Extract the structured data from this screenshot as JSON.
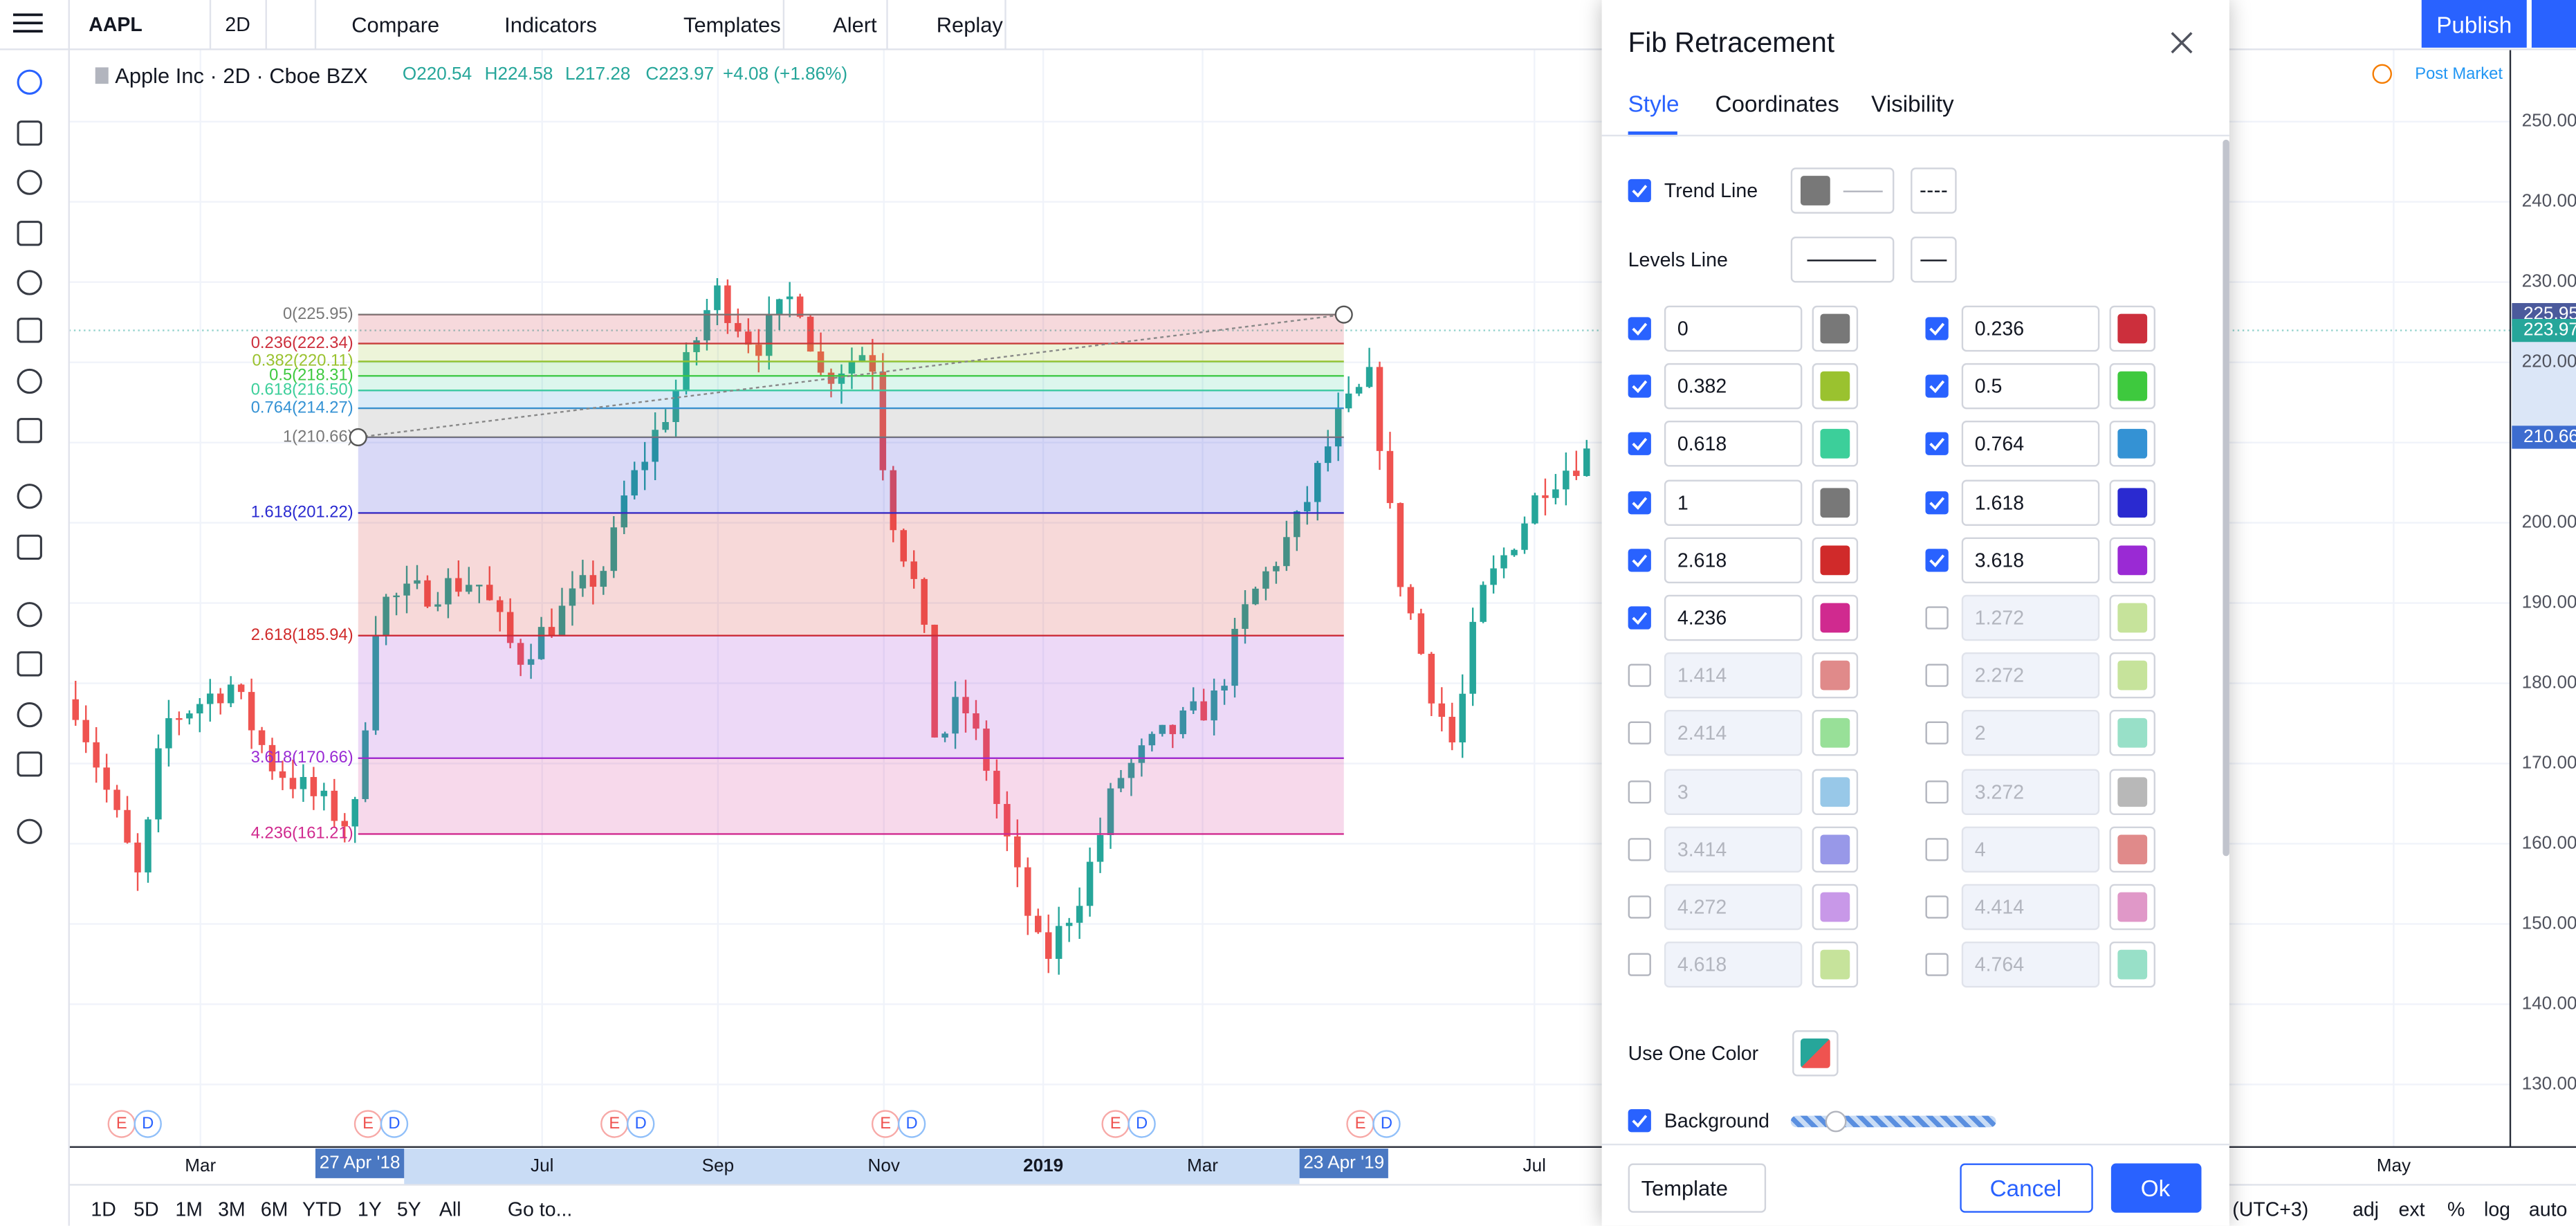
{
  "toolbar": {
    "symbol": "AAPL",
    "interval": "2D",
    "buttons": [
      "Compare",
      "Indicators",
      "Templates",
      "Alert",
      "Replay"
    ],
    "publish": "Publish"
  },
  "legend": {
    "name": "Apple Inc · 2D · Cboe BZX",
    "open": "O220.54",
    "high": "H224.58",
    "low": "L217.28",
    "close": "C223.97",
    "change": "+4.08 (+1.86%)"
  },
  "post_market": "Post Market",
  "chart_fib_levels": [
    {
      "label": "0(225.95)",
      "price": 225.95,
      "color": "#787878"
    },
    {
      "label": "0.236(222.34)",
      "price": 222.34,
      "color": "#cc2f3c"
    },
    {
      "label": "0.382(220.11)",
      "price": 220.11,
      "color": "#9ac22f"
    },
    {
      "label": "0.5(218.31)",
      "price": 218.31,
      "color": "#3ec93e"
    },
    {
      "label": "0.618(216.50)",
      "price": 216.5,
      "color": "#3ccf9a"
    },
    {
      "label": "0.764(214.27)",
      "price": 214.27,
      "color": "#3492d4"
    },
    {
      "label": "1(210.66)",
      "price": 210.66,
      "color": "#787878"
    },
    {
      "label": "1.618(201.22)",
      "price": 201.22,
      "color": "#2a2ad0"
    },
    {
      "label": "2.618(185.94)",
      "price": 185.94,
      "color": "#d02a2a"
    },
    {
      "label": "3.618(170.66)",
      "price": 170.66,
      "color": "#9a2ad4"
    },
    {
      "label": "4.236(161.21)",
      "price": 161.21,
      "color": "#d02a8f"
    }
  ],
  "price_axis": {
    "ticks": [
      {
        "value": 130,
        "label": "130.00"
      },
      {
        "value": 140,
        "label": "140.00"
      },
      {
        "value": 150,
        "label": "150.00"
      },
      {
        "value": 160,
        "label": "160.00"
      },
      {
        "value": 170,
        "label": "170.00"
      },
      {
        "value": 180,
        "label": "180.00"
      },
      {
        "value": 190,
        "label": "190.00"
      },
      {
        "value": 200,
        "label": "200.00"
      },
      {
        "value": 210,
        "label": "210.00"
      },
      {
        "value": 220,
        "label": "220.00"
      },
      {
        "value": 230,
        "label": "230.00"
      },
      {
        "value": 240,
        "label": "240.00"
      },
      {
        "value": 250,
        "label": "250.00"
      }
    ],
    "badges": [
      {
        "value": 225.95,
        "label": "225.95",
        "color": "#4b5a9c"
      },
      {
        "value": 223.97,
        "label": "223.97",
        "color": "#26a69a"
      },
      {
        "value": 210.66,
        "label": "210.66",
        "color": "#3d6ccf"
      }
    ]
  },
  "time_axis": {
    "labels": [
      "Mar",
      "Jul",
      "Sep",
      "Nov",
      "2019",
      "Mar",
      "Jul",
      "May"
    ],
    "range_start": "27 Apr '18",
    "range_end": "23 Apr '19"
  },
  "event_markers": [
    [
      "E",
      "D"
    ],
    [
      "E",
      "D"
    ],
    [
      "E",
      "D"
    ],
    [
      "E",
      "D"
    ],
    [
      "E",
      "D"
    ],
    [
      "E",
      "D"
    ]
  ],
  "bottom_bar": {
    "ranges": [
      "1D",
      "5D",
      "1M",
      "3M",
      "6M",
      "YTD",
      "1Y",
      "5Y",
      "All"
    ],
    "goto": "Go to...",
    "right": [
      "(UTC+3)",
      "adj",
      "ext",
      "%",
      "log",
      "auto"
    ]
  },
  "dialog": {
    "title": "Fib Retracement",
    "tabs": [
      "Style",
      "Coordinates",
      "Visibility"
    ],
    "trend_line": "Trend Line",
    "levels_line": "Levels Line",
    "levels": [
      {
        "value": "0",
        "color": "#787878",
        "checked": true
      },
      {
        "value": "0.236",
        "color": "#cc2f3c",
        "checked": true
      },
      {
        "value": "0.382",
        "color": "#9ac22f",
        "checked": true
      },
      {
        "value": "0.5",
        "color": "#3ec93e",
        "checked": true
      },
      {
        "value": "0.618",
        "color": "#3ccf9a",
        "checked": true
      },
      {
        "value": "0.764",
        "color": "#3492d4",
        "checked": true
      },
      {
        "value": "1",
        "color": "#787878",
        "checked": true
      },
      {
        "value": "1.618",
        "color": "#2a2ad0",
        "checked": true
      },
      {
        "value": "2.618",
        "color": "#d02a2a",
        "checked": true
      },
      {
        "value": "3.618",
        "color": "#9a2ad4",
        "checked": true
      },
      {
        "value": "4.236",
        "color": "#d02a8f",
        "checked": true
      },
      {
        "value": "1.272",
        "color": "#c6e39b",
        "checked": false
      },
      {
        "value": "1.414",
        "color": "#e08a8a",
        "checked": false
      },
      {
        "value": "2.272",
        "color": "#c6e39b",
        "checked": false
      },
      {
        "value": "2.414",
        "color": "#98e098",
        "checked": false
      },
      {
        "value": "2",
        "color": "#98e0c8",
        "checked": false
      },
      {
        "value": "3",
        "color": "#98c8e8",
        "checked": false
      },
      {
        "value": "3.272",
        "color": "#b8b8b8",
        "checked": false
      },
      {
        "value": "3.414",
        "color": "#9898e8",
        "checked": false
      },
      {
        "value": "4",
        "color": "#e08a8a",
        "checked": false
      },
      {
        "value": "4.272",
        "color": "#c898e8",
        "checked": false
      },
      {
        "value": "4.414",
        "color": "#e098c8",
        "checked": false
      },
      {
        "value": "4.618",
        "color": "#c6e39b",
        "checked": false
      },
      {
        "value": "4.764",
        "color": "#98e0c8",
        "checked": false
      }
    ],
    "use_one_color": "Use One Color",
    "background": "Background",
    "template": "Template",
    "cancel": "Cancel",
    "ok": "Ok"
  }
}
